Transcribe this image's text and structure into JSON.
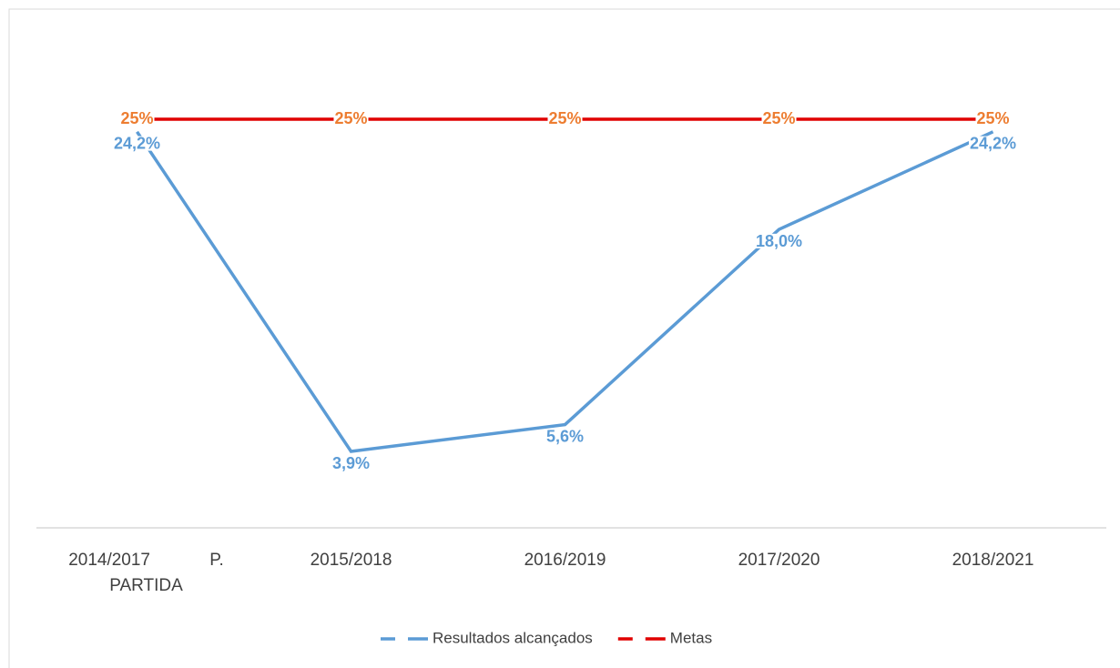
{
  "chart_data": {
    "type": "line",
    "categories": [
      "2014/2017 P. PARTIDA",
      "2015/2018",
      "2016/2019",
      "2017/2020",
      "2018/2021"
    ],
    "series": [
      {
        "name": "Resultados alcançados",
        "color": "#5b9bd5",
        "label_color": "#5b9bd5",
        "values": [
          24.2,
          3.9,
          5.6,
          18.0,
          24.2
        ],
        "value_labels": [
          "24,2%",
          "3,9%",
          "5,6%",
          "18,0%",
          "24,2%"
        ]
      },
      {
        "name": "Metas",
        "color": "#e00000",
        "label_color": "#ed7d31",
        "values": [
          25,
          25,
          25,
          25,
          25
        ],
        "value_labels": [
          "25%",
          "25%",
          "25%",
          "25%",
          "25%"
        ]
      }
    ],
    "legend": "bottom"
  }
}
